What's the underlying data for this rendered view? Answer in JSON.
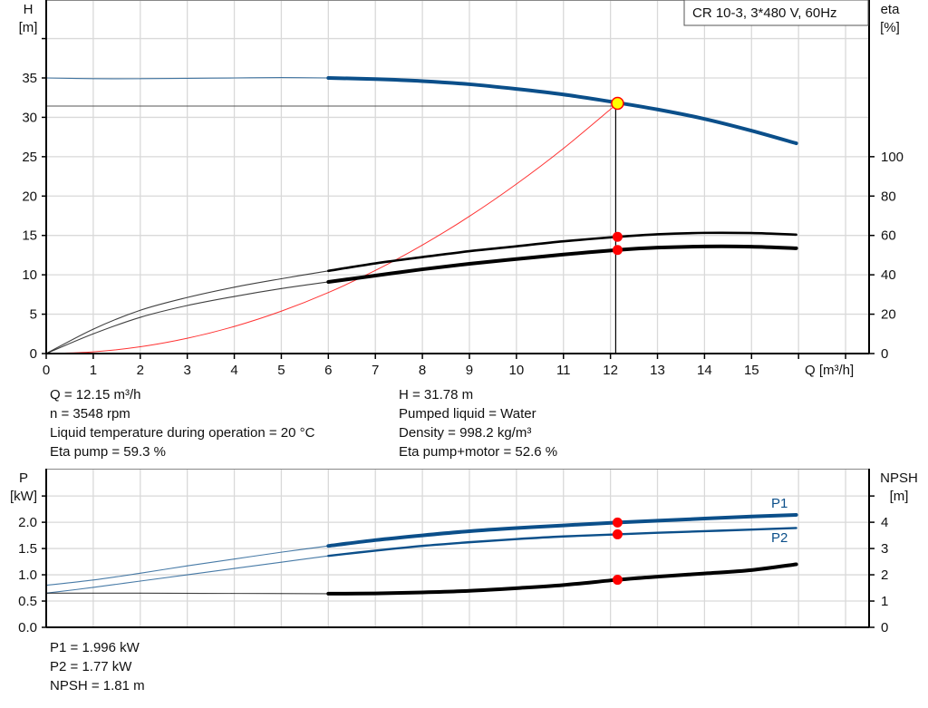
{
  "chart_data": [
    {
      "type": "line",
      "title": "CR 10-3, 3*480 V, 60Hz",
      "xlabel": "Q [m³/h]",
      "ylabel": "H\n[m]",
      "ylabel_right": "eta\n[%]",
      "xlim": [
        0,
        17.5
      ],
      "ylim": [
        0,
        44.9
      ],
      "ylim_right": [
        0,
        179.6
      ],
      "xticks": [
        "0",
        "1",
        "2",
        "3",
        "4",
        "5",
        "6",
        "7",
        "8",
        "9",
        "10",
        "11",
        "12",
        "13",
        "14",
        "15"
      ],
      "yticks": [
        "0",
        "5",
        "10",
        "15",
        "20",
        "25",
        "30",
        "35"
      ],
      "yticks_right": [
        "0",
        "20",
        "40",
        "60",
        "80",
        "100"
      ],
      "grid": true,
      "legend": "top-right",
      "series": [
        {
          "axis": "left",
          "color": "#0b4f8a",
          "x": [
            0,
            1,
            2,
            3,
            4,
            5,
            6,
            7,
            8,
            9,
            10,
            11,
            12,
            13,
            14,
            15,
            15.95
          ],
          "y": [
            35.0,
            34.9,
            34.9,
            34.95,
            35.0,
            35.05,
            35.0,
            34.85,
            34.6,
            34.2,
            33.6,
            32.9,
            32.0,
            31.0,
            29.8,
            28.3,
            26.7
          ]
        },
        {
          "axis": "right",
          "color": "#000000",
          "x": [
            0,
            1,
            2,
            3,
            4,
            5,
            6,
            7,
            8,
            9,
            10,
            11,
            12.15,
            13,
            14,
            15,
            15.95
          ],
          "y": [
            0,
            12.4,
            22,
            28.5,
            33.7,
            38,
            42,
            45.8,
            49,
            52,
            54.5,
            57,
            59.3,
            60.6,
            61.3,
            61.2,
            60.4
          ]
        },
        {
          "axis": "right",
          "color": "#000000",
          "x": [
            0,
            1,
            2,
            3,
            4,
            5,
            6,
            7,
            8,
            9,
            10,
            11,
            12.15,
            13,
            14,
            15,
            15.95
          ],
          "y": [
            0,
            10,
            18.4,
            24.4,
            29,
            33,
            36.4,
            39.6,
            42.8,
            45.6,
            48,
            50.3,
            52.6,
            53.8,
            54.4,
            54.3,
            53.5
          ]
        },
        {
          "axis": "left",
          "color": "#ff0000",
          "x": [
            0,
            1,
            2,
            3,
            4,
            5,
            6,
            7,
            8,
            9,
            10,
            11,
            12.15
          ],
          "y": [
            0,
            0.22,
            0.86,
            1.94,
            3.44,
            5.38,
            7.75,
            10.55,
            13.78,
            17.43,
            21.53,
            26.05,
            31.78
          ]
        }
      ],
      "operating_point": {
        "Q": 12.15,
        "H": 31.78,
        "eta_pump": 59.3,
        "eta_pump_motor": 52.6
      },
      "operating_point_color": "#ffff00",
      "marker_color": "#ff0000"
    },
    {
      "type": "line",
      "xlabel": "",
      "ylabel": "P\n[kW]",
      "ylabel_right": "NPSH\n[m]",
      "xlim": [
        0,
        17.5
      ],
      "ylim": [
        0,
        3.02
      ],
      "ylim_right": [
        0,
        6.04
      ],
      "yticks": [
        "0.0",
        "0.5",
        "1.0",
        "1.5",
        "2.0"
      ],
      "yticks_right": [
        "0",
        "1",
        "2",
        "3",
        "4"
      ],
      "grid": true,
      "series": [
        {
          "name": "P1",
          "axis": "left",
          "color": "#0b4f8a",
          "x": [
            0,
            1,
            2,
            3,
            4,
            5,
            6,
            7,
            8,
            9,
            10,
            11,
            12.15,
            13,
            14,
            15,
            15.95
          ],
          "y": [
            0.8,
            0.9,
            1.03,
            1.17,
            1.3,
            1.43,
            1.55,
            1.66,
            1.75,
            1.83,
            1.89,
            1.94,
            1.996,
            2.03,
            2.07,
            2.11,
            2.14
          ]
        },
        {
          "name": "P2",
          "axis": "left",
          "color": "#0b4f8a",
          "x": [
            0,
            1,
            2,
            3,
            4,
            5,
            6,
            7,
            8,
            9,
            10,
            11,
            12.15,
            13,
            14,
            15,
            15.95
          ],
          "y": [
            0.65,
            0.76,
            0.88,
            1.0,
            1.12,
            1.24,
            1.36,
            1.46,
            1.55,
            1.62,
            1.68,
            1.73,
            1.77,
            1.8,
            1.83,
            1.86,
            1.89
          ]
        },
        {
          "axis": "right",
          "color": "#000000",
          "x": [
            0,
            2,
            4,
            6,
            7,
            8,
            9,
            10,
            11,
            12.15,
            13,
            14,
            15,
            15.95
          ],
          "y": [
            1.3,
            1.3,
            1.29,
            1.28,
            1.29,
            1.33,
            1.39,
            1.49,
            1.61,
            1.81,
            1.93,
            2.05,
            2.18,
            2.4
          ]
        }
      ],
      "operating_point": {
        "Q": 12.15,
        "P1": 1.996,
        "P2": 1.77,
        "NPSH": 1.81
      }
    }
  ],
  "info_upper": {
    "left": [
      "Q = 12.15 m³/h",
      "n = 3548 rpm",
      "Liquid temperature during operation = 20 °C",
      "Eta pump = 59.3 %"
    ],
    "right": [
      "H = 31.78 m",
      "Pumped liquid = Water",
      "Density = 998.2 kg/m³",
      "Eta pump+motor = 52.6 %"
    ]
  },
  "info_lower": [
    "P1 = 1.996 kW",
    "P2 = 1.77 kW",
    "NPSH = 1.81 m"
  ]
}
